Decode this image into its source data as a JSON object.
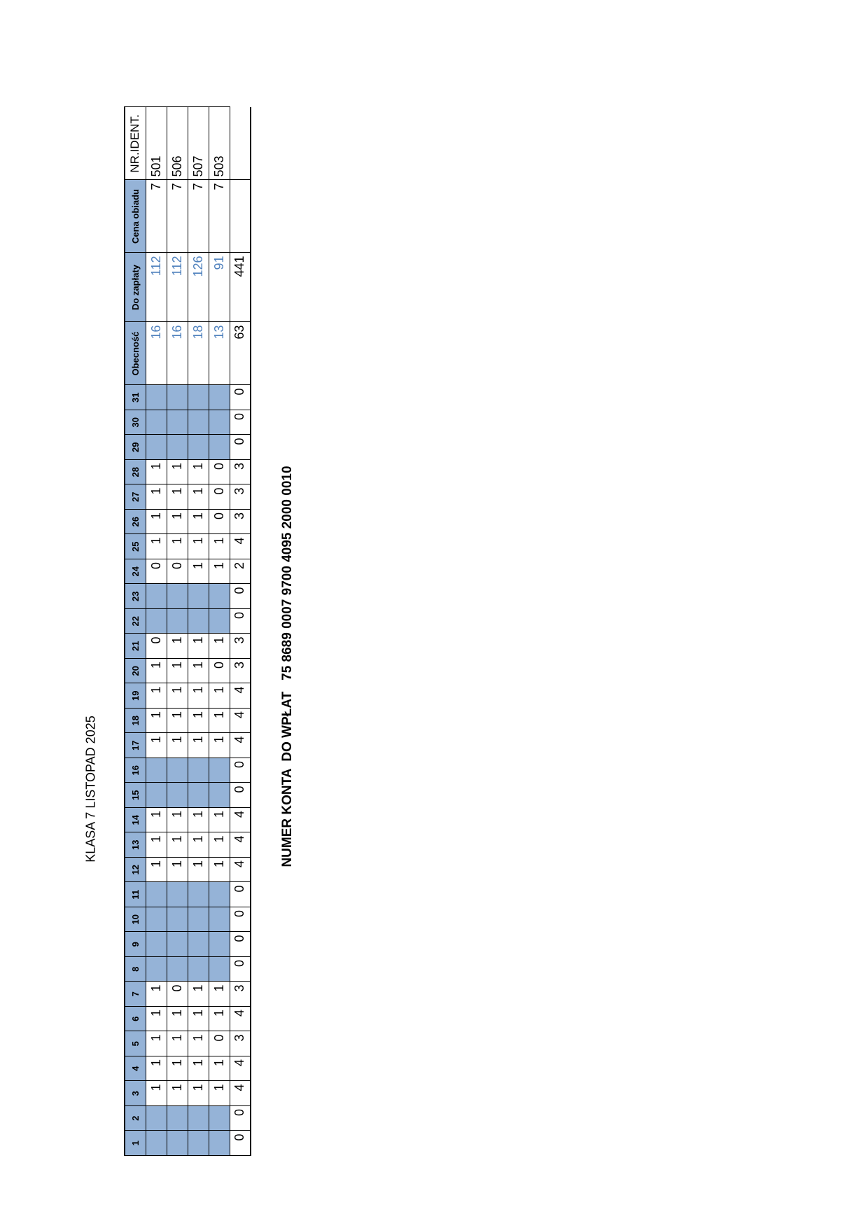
{
  "title": "KLASA 7 LISTOPAD 2025",
  "table": {
    "header": [
      "1",
      "2",
      "3",
      "4",
      "5",
      "6",
      "7",
      "8",
      "9",
      "10",
      "11",
      "12",
      "13",
      "14",
      "15",
      "16",
      "17",
      "18",
      "19",
      "20",
      "21",
      "22",
      "23",
      "24",
      "25",
      "26",
      "27",
      "28",
      "29",
      "30",
      "31",
      "Obecność",
      "Do zapłaty",
      "Cena obiadu",
      "NR.IDENT."
    ],
    "rows": [
      [
        null,
        null,
        1,
        1,
        1,
        1,
        1,
        null,
        null,
        null,
        null,
        1,
        1,
        1,
        null,
        null,
        1,
        1,
        1,
        1,
        0,
        null,
        null,
        0,
        1,
        1,
        1,
        1,
        null,
        null,
        null,
        16,
        112,
        7,
        501
      ],
      [
        null,
        null,
        1,
        1,
        1,
        1,
        0,
        null,
        null,
        null,
        null,
        1,
        1,
        1,
        null,
        null,
        1,
        1,
        1,
        1,
        1,
        null,
        null,
        0,
        1,
        1,
        1,
        1,
        null,
        null,
        null,
        16,
        112,
        7,
        506
      ],
      [
        null,
        null,
        1,
        1,
        1,
        1,
        1,
        null,
        null,
        null,
        null,
        1,
        1,
        1,
        null,
        null,
        1,
        1,
        1,
        1,
        1,
        null,
        null,
        1,
        1,
        1,
        1,
        1,
        null,
        null,
        null,
        18,
        126,
        7,
        507
      ],
      [
        null,
        null,
        1,
        1,
        0,
        1,
        1,
        null,
        null,
        null,
        null,
        1,
        1,
        1,
        null,
        null,
        1,
        1,
        1,
        0,
        1,
        null,
        null,
        1,
        1,
        0,
        0,
        0,
        null,
        null,
        null,
        13,
        91,
        7,
        503
      ]
    ],
    "totals": [
      0,
      0,
      4,
      4,
      3,
      4,
      3,
      0,
      0,
      0,
      0,
      4,
      4,
      4,
      0,
      0,
      4,
      4,
      4,
      3,
      3,
      0,
      0,
      2,
      4,
      3,
      3,
      3,
      0,
      0,
      0,
      63,
      441,
      null
    ]
  },
  "footer": "NUMER KONTA  DO WPŁAT   75 8689 0007 9700 4095 2000 0010"
}
